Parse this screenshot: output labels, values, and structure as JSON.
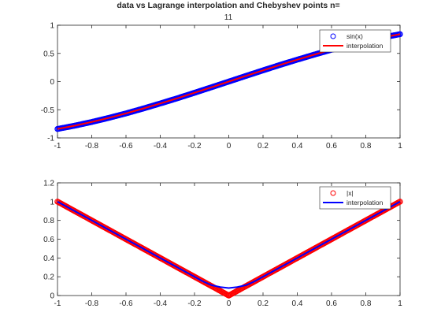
{
  "chart_data": [
    {
      "type": "scatter",
      "title_lines": [
        "data vs Lagrange interpolation and Chebyshev points n=",
        "11"
      ],
      "xlabel": "",
      "ylabel": "",
      "xlim": [
        -1,
        1
      ],
      "ylim": [
        -1,
        1
      ],
      "xticks": [
        -1,
        -0.8,
        -0.6,
        -0.4,
        -0.2,
        0,
        0.2,
        0.4,
        0.6,
        0.8,
        1
      ],
      "yticks": [
        -1,
        -0.5,
        0,
        0.5,
        1
      ],
      "xtick_labels": [
        "-1",
        "-0.8",
        "-0.6",
        "-0.4",
        "-0.2",
        "0",
        "0.2",
        "0.4",
        "0.6",
        "0.8",
        "1"
      ],
      "ytick_labels": [
        "-1",
        "-0.5",
        "0",
        "0.5",
        "1"
      ],
      "grid": false,
      "legend_position": "top-right",
      "series": [
        {
          "name": "sin(x)",
          "kind": "markers",
          "marker": "circle",
          "color": "#0000ff",
          "x": [
            -1,
            -0.9,
            -0.8,
            -0.7,
            -0.6,
            -0.5,
            -0.4,
            -0.3,
            -0.2,
            -0.1,
            0,
            0.1,
            0.2,
            0.3,
            0.4,
            0.5,
            0.6,
            0.7,
            0.8,
            0.9,
            1
          ],
          "y": [
            -0.841,
            -0.783,
            -0.717,
            -0.644,
            -0.565,
            -0.479,
            -0.389,
            -0.296,
            -0.199,
            -0.1,
            0,
            0.1,
            0.199,
            0.296,
            0.389,
            0.479,
            0.565,
            0.644,
            0.717,
            0.783,
            0.841
          ]
        },
        {
          "name": "interpolation",
          "kind": "line",
          "color": "#ff0000",
          "x": [
            -1,
            -0.9,
            -0.8,
            -0.7,
            -0.6,
            -0.5,
            -0.4,
            -0.3,
            -0.2,
            -0.1,
            0,
            0.1,
            0.2,
            0.3,
            0.4,
            0.5,
            0.6,
            0.7,
            0.8,
            0.9,
            1
          ],
          "y": [
            -0.841,
            -0.783,
            -0.717,
            -0.644,
            -0.565,
            -0.479,
            -0.389,
            -0.296,
            -0.199,
            -0.1,
            0,
            0.1,
            0.199,
            0.296,
            0.389,
            0.479,
            0.565,
            0.644,
            0.717,
            0.783,
            0.841
          ]
        }
      ]
    },
    {
      "type": "scatter",
      "xlabel": "",
      "ylabel": "",
      "xlim": [
        -1,
        1
      ],
      "ylim": [
        0,
        1.2
      ],
      "xticks": [
        -1,
        -0.8,
        -0.6,
        -0.4,
        -0.2,
        0,
        0.2,
        0.4,
        0.6,
        0.8,
        1
      ],
      "yticks": [
        0,
        0.2,
        0.4,
        0.6,
        0.8,
        1,
        1.2
      ],
      "xtick_labels": [
        "-1",
        "-0.8",
        "-0.6",
        "-0.4",
        "-0.2",
        "0",
        "0.2",
        "0.4",
        "0.6",
        "0.8",
        "1"
      ],
      "ytick_labels": [
        "0",
        "0.2",
        "0.4",
        "0.6",
        "0.8",
        "1",
        "1.2"
      ],
      "grid": false,
      "legend_position": "top-right",
      "series": [
        {
          "name": "|x|",
          "kind": "markers",
          "marker": "circle",
          "color": "#ff0000",
          "x": [
            -1,
            -0.9,
            -0.8,
            -0.7,
            -0.6,
            -0.5,
            -0.4,
            -0.3,
            -0.2,
            -0.1,
            0,
            0.1,
            0.2,
            0.3,
            0.4,
            0.5,
            0.6,
            0.7,
            0.8,
            0.9,
            1
          ],
          "y": [
            1,
            0.9,
            0.8,
            0.7,
            0.6,
            0.5,
            0.4,
            0.3,
            0.2,
            0.1,
            0,
            0.1,
            0.2,
            0.3,
            0.4,
            0.5,
            0.6,
            0.7,
            0.8,
            0.9,
            1
          ]
        },
        {
          "name": "interpolation",
          "kind": "line",
          "color": "#0000ff",
          "x": [
            -1,
            -0.9,
            -0.8,
            -0.7,
            -0.6,
            -0.5,
            -0.4,
            -0.3,
            -0.2,
            -0.15,
            -0.1,
            -0.05,
            0,
            0.05,
            0.1,
            0.15,
            0.2,
            0.3,
            0.4,
            0.5,
            0.6,
            0.7,
            0.8,
            0.9,
            1
          ],
          "y": [
            1,
            0.9,
            0.8,
            0.7,
            0.6,
            0.5,
            0.4,
            0.3,
            0.2,
            0.15,
            0.11,
            0.09,
            0.08,
            0.09,
            0.11,
            0.15,
            0.2,
            0.3,
            0.4,
            0.5,
            0.6,
            0.7,
            0.8,
            0.9,
            1
          ]
        }
      ]
    }
  ]
}
